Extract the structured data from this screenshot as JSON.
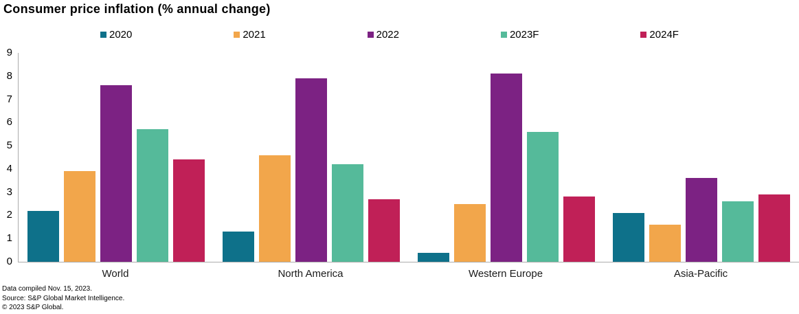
{
  "title": "Consumer price inflation (% annual change)",
  "chart_data": {
    "type": "bar",
    "categories": [
      "World",
      "North America",
      "Western Europe",
      "Asia-Pacific"
    ],
    "series": [
      {
        "name": "2020",
        "color": "#0E718A",
        "values": [
          2.2,
          1.3,
          0.4,
          2.1
        ]
      },
      {
        "name": "2021",
        "color": "#F2A64B",
        "values": [
          3.9,
          4.6,
          2.5,
          1.6
        ]
      },
      {
        "name": "2022",
        "color": "#7C2283",
        "values": [
          7.6,
          7.9,
          8.1,
          3.6
        ]
      },
      {
        "name": "2023F",
        "color": "#55BA9A",
        "values": [
          5.7,
          4.2,
          5.6,
          2.6
        ]
      },
      {
        "name": "2024F",
        "color": "#C02057",
        "values": [
          4.4,
          2.7,
          2.8,
          2.9
        ]
      }
    ],
    "xlabel": "",
    "ylabel": "",
    "ylim": [
      0,
      9
    ],
    "ytick_step": 1,
    "grid": false,
    "legend_position": "top",
    "axis_color": "#ABABAB"
  },
  "footer": {
    "line1": "Data compiled Nov. 15, 2023.",
    "line2": "Source: S&P Global Market Intelligence.",
    "line3": "© 2023 S&P Global."
  }
}
